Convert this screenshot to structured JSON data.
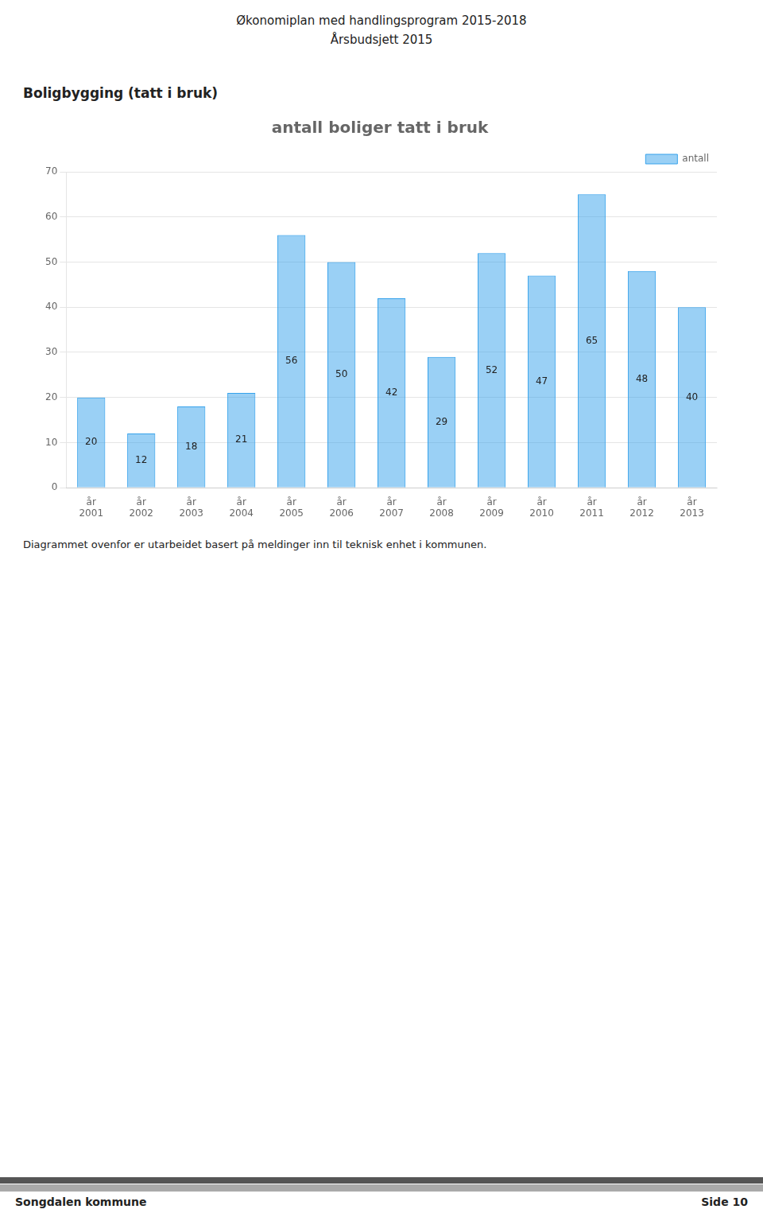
{
  "header": [
    "Økonomiplan med handlingsprogram 2015-2018",
    "Årsbudsjett 2015"
  ],
  "section_title": "Boligbygging (tatt i bruk)",
  "caption": "Diagrammet ovenfor er utarbeidet basert på meldinger inn til teknisk enhet i kommunen.",
  "footer": [
    "Songdalen kommune",
    "Side 10"
  ],
  "chart_data": {
    "type": "bar",
    "title": "antall boliger tatt i bruk",
    "categories": [
      "år\n2001",
      "år\n2002",
      "år\n2003",
      "år\n2004",
      "år\n2005",
      "år\n2006",
      "år\n2007",
      "år\n2008",
      "år\n2009",
      "år\n2010",
      "år\n2011",
      "år\n2012",
      "år\n2013"
    ],
    "series": [
      {
        "name": "antall",
        "values": [
          20,
          12,
          18,
          21,
          56,
          50,
          42,
          29,
          52,
          47,
          65,
          48,
          40
        ]
      }
    ],
    "ylim": [
      0,
      70
    ],
    "yticks": [
      0,
      10,
      20,
      30,
      40,
      50,
      60,
      70
    ],
    "grid": true,
    "legend": "upper right",
    "data_labels": true
  }
}
